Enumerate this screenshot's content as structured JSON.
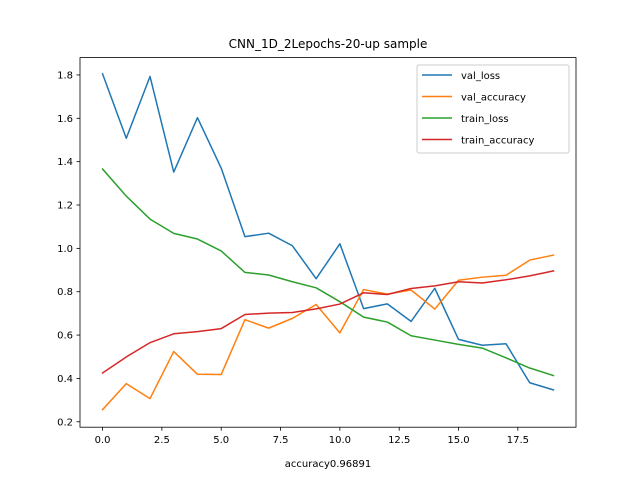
{
  "chart_data": {
    "type": "line",
    "title": "CNN_1D_2Lepochs-20-up sample",
    "xlabel": "accuracy0.96891",
    "ylabel": "",
    "xlim": [
      -0.95,
      19.95
    ],
    "ylim": [
      0.175,
      1.88
    ],
    "xticks": [
      0.0,
      2.5,
      5.0,
      7.5,
      10.0,
      12.5,
      15.0,
      17.5
    ],
    "xtick_labels": [
      "0.0",
      "2.5",
      "5.0",
      "7.5",
      "10.0",
      "12.5",
      "15.0",
      "17.5"
    ],
    "yticks": [
      0.2,
      0.4,
      0.6,
      0.8,
      1.0,
      1.2,
      1.4,
      1.6,
      1.8
    ],
    "ytick_labels": [
      "0.2",
      "0.4",
      "0.6",
      "0.8",
      "1.0",
      "1.2",
      "1.4",
      "1.6",
      "1.8"
    ],
    "grid": false,
    "legend_position": "top-right",
    "x": [
      0,
      1,
      2,
      3,
      4,
      5,
      6,
      7,
      8,
      9,
      10,
      11,
      12,
      13,
      14,
      15,
      16,
      17,
      18,
      19
    ],
    "series": [
      {
        "name": "val_loss",
        "color": "#1f77b4",
        "values": [
          1.805,
          1.508,
          1.793,
          1.352,
          1.603,
          1.37,
          1.054,
          1.07,
          1.012,
          0.86,
          1.021,
          0.722,
          0.744,
          0.663,
          0.816,
          0.58,
          0.553,
          0.56,
          0.38,
          0.347
        ]
      },
      {
        "name": "val_accuracy",
        "color": "#ff7f0e",
        "values": [
          0.256,
          0.376,
          0.307,
          0.524,
          0.419,
          0.418,
          0.671,
          0.632,
          0.677,
          0.741,
          0.61,
          0.81,
          0.789,
          0.808,
          0.72,
          0.853,
          0.867,
          0.876,
          0.946,
          0.969
        ]
      },
      {
        "name": "train_loss",
        "color": "#2ca02c",
        "values": [
          1.366,
          1.241,
          1.135,
          1.069,
          1.043,
          0.988,
          0.889,
          0.877,
          0.846,
          0.818,
          0.754,
          0.683,
          0.66,
          0.597,
          0.577,
          0.557,
          0.54,
          0.495,
          0.448,
          0.413
        ]
      },
      {
        "name": "train_accuracy",
        "color": "#d62728",
        "values": [
          0.425,
          0.499,
          0.565,
          0.606,
          0.616,
          0.63,
          0.695,
          0.701,
          0.704,
          0.721,
          0.743,
          0.795,
          0.787,
          0.815,
          0.827,
          0.846,
          0.84,
          0.855,
          0.873,
          0.896
        ]
      }
    ]
  }
}
